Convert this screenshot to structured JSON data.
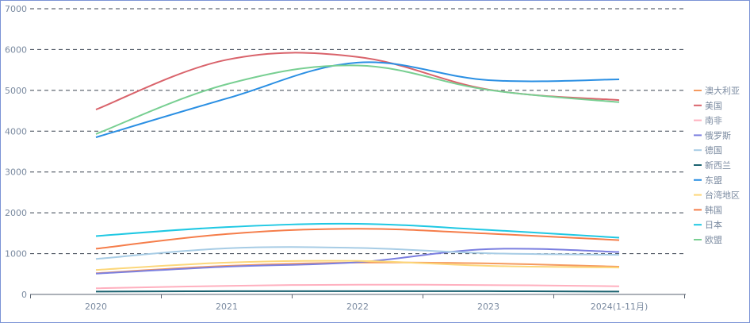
{
  "chart_data": {
    "type": "line",
    "title": "",
    "xlabel": "",
    "ylabel": "",
    "categories": [
      "2020",
      "2021",
      "2022",
      "2023",
      "2024(1-11月)"
    ],
    "ylim": [
      0,
      7000
    ],
    "yticks": [
      "0",
      "1000",
      "2000",
      "3000",
      "4000",
      "5000",
      "6000",
      "7000"
    ],
    "grid": true,
    "legend_position": "right",
    "series": [
      {
        "name": "澳大利亚",
        "color": "#f59a5f",
        "values": [
          520,
          700,
          780,
          760,
          680
        ]
      },
      {
        "name": "美国",
        "color": "#d9636b",
        "values": [
          4530,
          5750,
          5820,
          5020,
          4760
        ]
      },
      {
        "name": "南非",
        "color": "#ffb0bf",
        "values": [
          150,
          210,
          240,
          230,
          200
        ]
      },
      {
        "name": "俄罗斯",
        "color": "#7b7fe0",
        "values": [
          510,
          680,
          790,
          1110,
          1040
        ]
      },
      {
        "name": "德国",
        "color": "#a7cce5",
        "values": [
          870,
          1130,
          1140,
          1010,
          970
        ]
      },
      {
        "name": "新西兰",
        "color": "#1b6270",
        "values": [
          70,
          80,
          80,
          80,
          70
        ]
      },
      {
        "name": "东盟",
        "color": "#2a8fe3",
        "values": [
          3850,
          4800,
          5680,
          5250,
          5270
        ]
      },
      {
        "name": "台湾地区",
        "color": "#fcd77a",
        "values": [
          600,
          780,
          820,
          700,
          660
        ]
      },
      {
        "name": "韩国",
        "color": "#f57d4a",
        "values": [
          1120,
          1480,
          1610,
          1490,
          1330
        ]
      },
      {
        "name": "日本",
        "color": "#1fc8e3",
        "values": [
          1430,
          1650,
          1730,
          1580,
          1390
        ]
      },
      {
        "name": "欧盟",
        "color": "#78cf92",
        "values": [
          3930,
          5150,
          5610,
          5010,
          4710
        ]
      }
    ]
  }
}
